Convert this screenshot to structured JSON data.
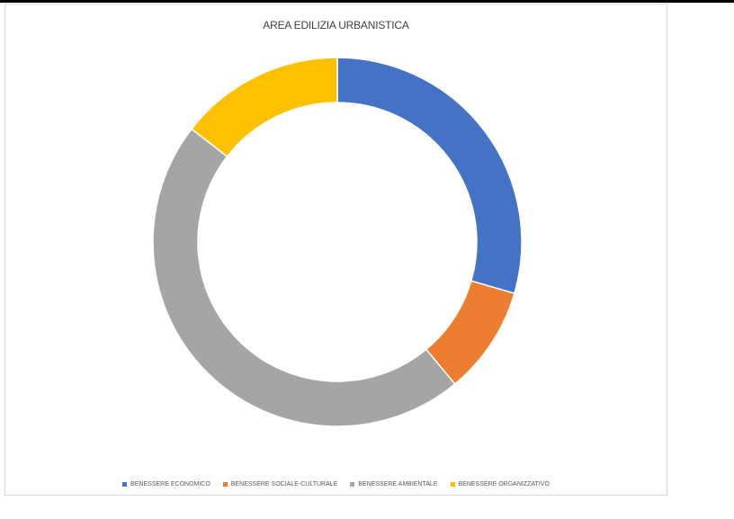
{
  "chart_data": {
    "type": "pie",
    "variant": "donut",
    "title": "AREA EDILIZIA URBANISTICA",
    "categories": [
      "BENESSERE ECONOMICO",
      "BENESSERE SOCIALE-CULTURALE",
      "BENESSERE AMBIENTALE",
      "BENESSERE ORGANIZZATIVO"
    ],
    "values": [
      29.5,
      9.5,
      46.5,
      14.5
    ],
    "colors": [
      "#4472C4",
      "#ED7D31",
      "#A5A5A5",
      "#FFC000"
    ],
    "legend_position": "bottom"
  }
}
